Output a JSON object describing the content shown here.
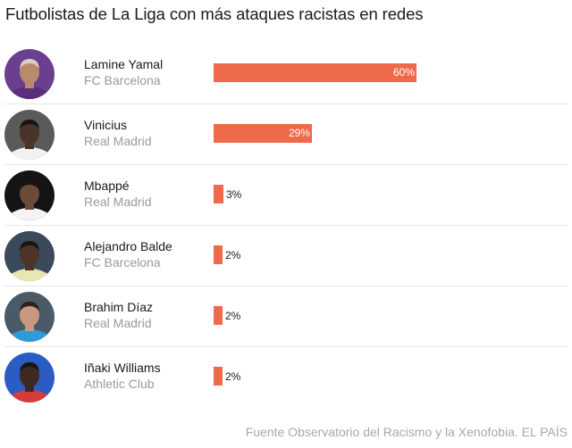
{
  "title": "Futbolistas de La Liga con más ataques racistas en redes",
  "source": "Fuente Observatorio del Racismo y la Xenofobia. EL PAÍS",
  "colors": {
    "bar": "#ee6a4a",
    "divider": "#e6e6e6",
    "club_text": "#9a9a9a"
  },
  "players": [
    {
      "name": "Lamine Yamal",
      "club": "FC Barcelona",
      "value": 60,
      "label": "60%",
      "avatar_bg": "#6b3f8f",
      "skin": "#b98a6c",
      "hair": "#d8cfc4",
      "shirt": "#5a2e7a"
    },
    {
      "name": "Vinicius",
      "club": "Real Madrid",
      "value": 29,
      "label": "29%",
      "avatar_bg": "#5a5a5a",
      "skin": "#4a3328",
      "hair": "#1a1512",
      "shirt": "#f2f2f2"
    },
    {
      "name": "Mbappé",
      "club": "Real Madrid",
      "value": 3,
      "label": "3%",
      "avatar_bg": "#141414",
      "skin": "#6e4a38",
      "hair": "#1a1512",
      "shirt": "#f4f4f4"
    },
    {
      "name": "Alejandro Balde",
      "club": "FC Barcelona",
      "value": 2,
      "label": "2%",
      "avatar_bg": "#3a4a5a",
      "skin": "#4e3428",
      "hair": "#1a1512",
      "shirt": "#e9e6b0"
    },
    {
      "name": "Brahim Díaz",
      "club": "Real Madrid",
      "value": 2,
      "label": "2%",
      "avatar_bg": "#4a5a66",
      "skin": "#c89880",
      "hair": "#2a211c",
      "shirt": "#2f9ad8"
    },
    {
      "name": "Iñaki Williams",
      "club": "Athletic Club",
      "value": 2,
      "label": "2%",
      "avatar_bg": "#2a5cc4",
      "skin": "#3e2a22",
      "hair": "#1a1512",
      "shirt": "#d63a3a"
    }
  ],
  "chart_data": {
    "type": "bar",
    "orientation": "horizontal",
    "title": "Futbolistas de La Liga con más ataques racistas en redes",
    "categories": [
      "Lamine Yamal",
      "Vinicius",
      "Mbappé",
      "Alejandro Balde",
      "Brahim Díaz",
      "Iñaki Williams"
    ],
    "subcategories": [
      "FC Barcelona",
      "Real Madrid",
      "Real Madrid",
      "FC Barcelona",
      "Real Madrid",
      "Athletic Club"
    ],
    "values": [
      60,
      29,
      3,
      2,
      2,
      2
    ],
    "value_labels": [
      "60%",
      "29%",
      "3%",
      "2%",
      "2%",
      "2%"
    ],
    "unit": "%",
    "xlabel": "",
    "ylabel": "",
    "xlim": [
      0,
      60
    ],
    "grid": false,
    "legend": null,
    "source": "Fuente Observatorio del Racismo y la Xenofobia. EL PAÍS"
  }
}
